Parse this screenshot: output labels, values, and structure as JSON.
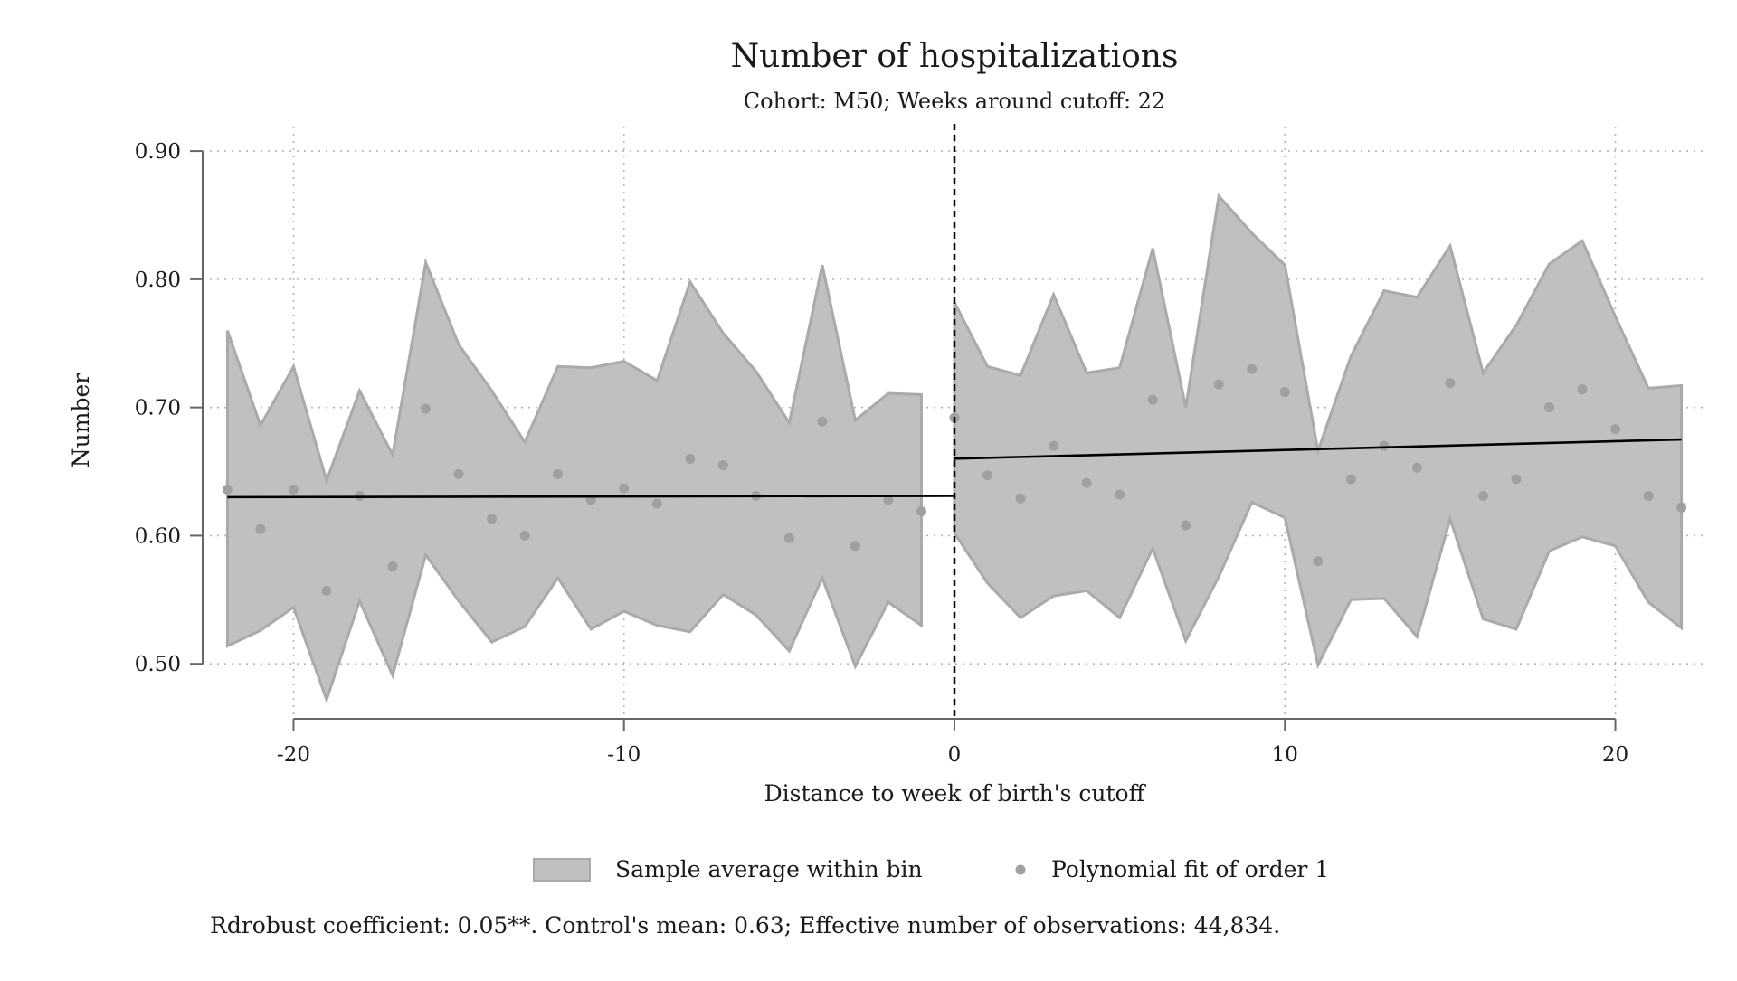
{
  "chart_data": {
    "type": "scatter",
    "title": "Number of hospitalizations",
    "subtitle": "Cohort: M50; Weeks around cutoff: 22",
    "xlabel": "Distance to week of birth's cutoff",
    "ylabel": "Number",
    "xlim": [
      -22.75,
      22.75
    ],
    "ylim": [
      0.455,
      0.905
    ],
    "xticks": [
      -20,
      -10,
      0,
      10,
      20
    ],
    "xtick_labels": [
      "-20",
      "-10",
      "0",
      "10",
      "20"
    ],
    "yticks": [
      0.5,
      0.6,
      0.7,
      0.8,
      0.9
    ],
    "ytick_labels": [
      "0.50",
      "0.60",
      "0.70",
      "0.80",
      "0.90"
    ],
    "grid": true,
    "cutoff_x": 0,
    "legend": {
      "position": "bottom",
      "items": [
        "Sample average within bin",
        "Polynomial fit of order 1"
      ]
    },
    "note": "Rdrobust coefficient: 0.05**. Control's mean: 0.63; Effective number of observations: 44,834.",
    "colors": {
      "band": "#c0c0c0",
      "band_edge": "#aaaaaa",
      "points": "#a0a0a0",
      "fit": "#000000",
      "axis": "#666666",
      "grid": "#b5b5b5"
    },
    "bins": {
      "x": [
        -22,
        -21,
        -20,
        -19,
        -18,
        -17,
        -16,
        -15,
        -14,
        -13,
        -12,
        -11,
        -10,
        -9,
        -8,
        -7,
        -6,
        -5,
        -4,
        -3,
        -2,
        -1,
        0,
        1,
        2,
        3,
        4,
        5,
        6,
        7,
        8,
        9,
        10,
        11,
        12,
        13,
        14,
        15,
        16,
        17,
        18,
        19,
        20,
        21,
        22
      ],
      "mean": [
        0.636,
        0.605,
        0.636,
        0.557,
        0.631,
        0.576,
        0.699,
        0.648,
        0.613,
        0.6,
        0.648,
        0.628,
        0.637,
        0.625,
        0.66,
        0.655,
        0.631,
        0.598,
        0.689,
        0.592,
        0.628,
        0.619,
        0.692,
        0.647,
        0.629,
        0.67,
        0.641,
        0.632,
        0.706,
        0.608,
        0.718,
        0.73,
        0.712,
        0.58,
        0.644,
        0.67,
        0.653,
        0.719,
        0.631,
        0.644,
        0.7,
        0.714,
        0.683,
        0.631,
        0.622
      ],
      "upper": [
        0.76,
        0.686,
        0.732,
        0.643,
        0.713,
        0.663,
        0.813,
        0.749,
        0.713,
        0.673,
        0.732,
        0.731,
        0.736,
        0.721,
        0.798,
        0.758,
        0.728,
        0.688,
        0.811,
        0.69,
        0.711,
        0.71,
        0.782,
        0.732,
        0.725,
        0.788,
        0.727,
        0.731,
        0.824,
        0.7,
        0.865,
        0.836,
        0.811,
        0.666,
        0.74,
        0.791,
        0.786,
        0.826,
        0.727,
        0.764,
        0.812,
        0.83,
        0.771,
        0.715,
        0.717
      ],
      "lower": [
        0.514,
        0.526,
        0.544,
        0.472,
        0.549,
        0.491,
        0.585,
        0.549,
        0.517,
        0.529,
        0.567,
        0.527,
        0.541,
        0.53,
        0.525,
        0.554,
        0.538,
        0.51,
        0.567,
        0.498,
        0.548,
        0.53,
        0.602,
        0.563,
        0.536,
        0.553,
        0.557,
        0.536,
        0.59,
        0.518,
        0.568,
        0.626,
        0.614,
        0.499,
        0.55,
        0.551,
        0.521,
        0.613,
        0.535,
        0.527,
        0.588,
        0.599,
        0.592,
        0.548,
        0.528
      ]
    },
    "fits": [
      {
        "x": [
          -22,
          0
        ],
        "y": [
          0.63,
          0.631
        ]
      },
      {
        "x": [
          0,
          22
        ],
        "y": [
          0.66,
          0.675
        ]
      }
    ]
  }
}
